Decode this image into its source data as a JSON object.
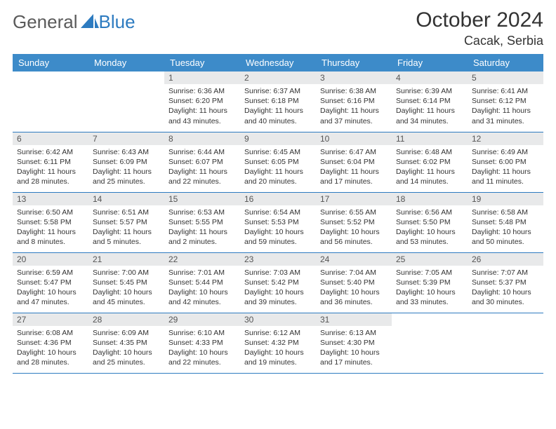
{
  "logo": {
    "text1": "General",
    "text2": "Blue"
  },
  "title": "October 2024",
  "location": "Cacak, Serbia",
  "colors": {
    "header_bg": "#3d8bc9",
    "accent": "#2d7bc0",
    "daynum_bg": "#e8e9ea",
    "text": "#333333"
  },
  "weekdays": [
    "Sunday",
    "Monday",
    "Tuesday",
    "Wednesday",
    "Thursday",
    "Friday",
    "Saturday"
  ],
  "weeks": [
    [
      null,
      null,
      {
        "n": "1",
        "sr": "6:36 AM",
        "ss": "6:20 PM",
        "dl": "11 hours and 43 minutes."
      },
      {
        "n": "2",
        "sr": "6:37 AM",
        "ss": "6:18 PM",
        "dl": "11 hours and 40 minutes."
      },
      {
        "n": "3",
        "sr": "6:38 AM",
        "ss": "6:16 PM",
        "dl": "11 hours and 37 minutes."
      },
      {
        "n": "4",
        "sr": "6:39 AM",
        "ss": "6:14 PM",
        "dl": "11 hours and 34 minutes."
      },
      {
        "n": "5",
        "sr": "6:41 AM",
        "ss": "6:12 PM",
        "dl": "11 hours and 31 minutes."
      }
    ],
    [
      {
        "n": "6",
        "sr": "6:42 AM",
        "ss": "6:11 PM",
        "dl": "11 hours and 28 minutes."
      },
      {
        "n": "7",
        "sr": "6:43 AM",
        "ss": "6:09 PM",
        "dl": "11 hours and 25 minutes."
      },
      {
        "n": "8",
        "sr": "6:44 AM",
        "ss": "6:07 PM",
        "dl": "11 hours and 22 minutes."
      },
      {
        "n": "9",
        "sr": "6:45 AM",
        "ss": "6:05 PM",
        "dl": "11 hours and 20 minutes."
      },
      {
        "n": "10",
        "sr": "6:47 AM",
        "ss": "6:04 PM",
        "dl": "11 hours and 17 minutes."
      },
      {
        "n": "11",
        "sr": "6:48 AM",
        "ss": "6:02 PM",
        "dl": "11 hours and 14 minutes."
      },
      {
        "n": "12",
        "sr": "6:49 AM",
        "ss": "6:00 PM",
        "dl": "11 hours and 11 minutes."
      }
    ],
    [
      {
        "n": "13",
        "sr": "6:50 AM",
        "ss": "5:58 PM",
        "dl": "11 hours and 8 minutes."
      },
      {
        "n": "14",
        "sr": "6:51 AM",
        "ss": "5:57 PM",
        "dl": "11 hours and 5 minutes."
      },
      {
        "n": "15",
        "sr": "6:53 AM",
        "ss": "5:55 PM",
        "dl": "11 hours and 2 minutes."
      },
      {
        "n": "16",
        "sr": "6:54 AM",
        "ss": "5:53 PM",
        "dl": "10 hours and 59 minutes."
      },
      {
        "n": "17",
        "sr": "6:55 AM",
        "ss": "5:52 PM",
        "dl": "10 hours and 56 minutes."
      },
      {
        "n": "18",
        "sr": "6:56 AM",
        "ss": "5:50 PM",
        "dl": "10 hours and 53 minutes."
      },
      {
        "n": "19",
        "sr": "6:58 AM",
        "ss": "5:48 PM",
        "dl": "10 hours and 50 minutes."
      }
    ],
    [
      {
        "n": "20",
        "sr": "6:59 AM",
        "ss": "5:47 PM",
        "dl": "10 hours and 47 minutes."
      },
      {
        "n": "21",
        "sr": "7:00 AM",
        "ss": "5:45 PM",
        "dl": "10 hours and 45 minutes."
      },
      {
        "n": "22",
        "sr": "7:01 AM",
        "ss": "5:44 PM",
        "dl": "10 hours and 42 minutes."
      },
      {
        "n": "23",
        "sr": "7:03 AM",
        "ss": "5:42 PM",
        "dl": "10 hours and 39 minutes."
      },
      {
        "n": "24",
        "sr": "7:04 AM",
        "ss": "5:40 PM",
        "dl": "10 hours and 36 minutes."
      },
      {
        "n": "25",
        "sr": "7:05 AM",
        "ss": "5:39 PM",
        "dl": "10 hours and 33 minutes."
      },
      {
        "n": "26",
        "sr": "7:07 AM",
        "ss": "5:37 PM",
        "dl": "10 hours and 30 minutes."
      }
    ],
    [
      {
        "n": "27",
        "sr": "6:08 AM",
        "ss": "4:36 PM",
        "dl": "10 hours and 28 minutes."
      },
      {
        "n": "28",
        "sr": "6:09 AM",
        "ss": "4:35 PM",
        "dl": "10 hours and 25 minutes."
      },
      {
        "n": "29",
        "sr": "6:10 AM",
        "ss": "4:33 PM",
        "dl": "10 hours and 22 minutes."
      },
      {
        "n": "30",
        "sr": "6:12 AM",
        "ss": "4:32 PM",
        "dl": "10 hours and 19 minutes."
      },
      {
        "n": "31",
        "sr": "6:13 AM",
        "ss": "4:30 PM",
        "dl": "10 hours and 17 minutes."
      },
      null,
      null
    ]
  ],
  "labels": {
    "sunrise": "Sunrise:",
    "sunset": "Sunset:",
    "daylight": "Daylight:"
  }
}
